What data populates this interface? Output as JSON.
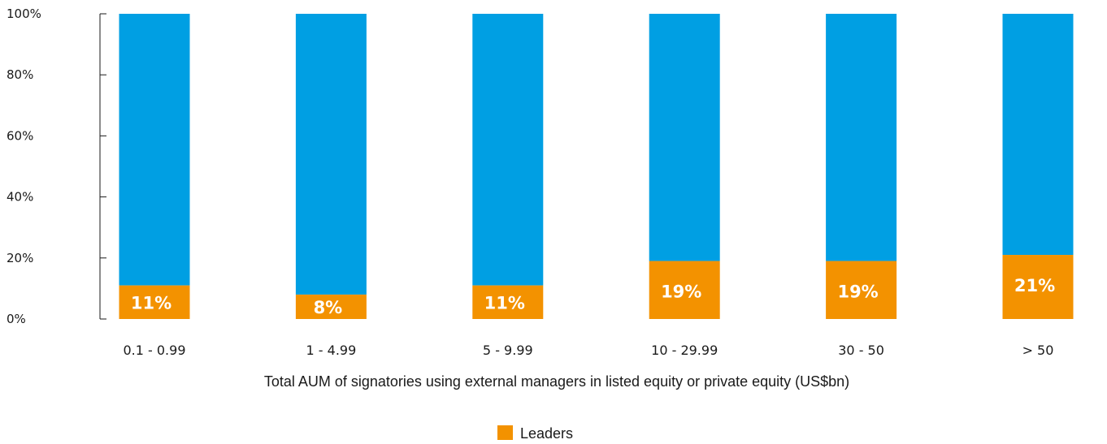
{
  "chart_data": {
    "type": "bar",
    "stacked": true,
    "categories": [
      "0.1 - 0.99",
      "1 - 4.99",
      "5 - 9.99",
      "10 - 29.99",
      "30 - 50",
      "> 50"
    ],
    "series": [
      {
        "name": "Leaders",
        "values": [
          11,
          8,
          11,
          19,
          19,
          21
        ],
        "color": "#f39200"
      },
      {
        "values": [
          89,
          92,
          89,
          81,
          81,
          79
        ],
        "color": "#009fe3"
      }
    ],
    "data_labels": [
      "11%",
      "8%",
      "11%",
      "19%",
      "19%",
      "21%"
    ],
    "y_ticks": [
      "0%",
      "20%",
      "40%",
      "60%",
      "80%",
      "100%"
    ],
    "ylim": [
      0,
      100
    ],
    "xlabel": "Total AUM of signatories using external managers in listed equity or private equity (US$bn)",
    "ylabel": "",
    "title": "",
    "legend": {
      "placement": "bottom-center",
      "entries": [
        "Leaders"
      ]
    },
    "grid": false
  }
}
